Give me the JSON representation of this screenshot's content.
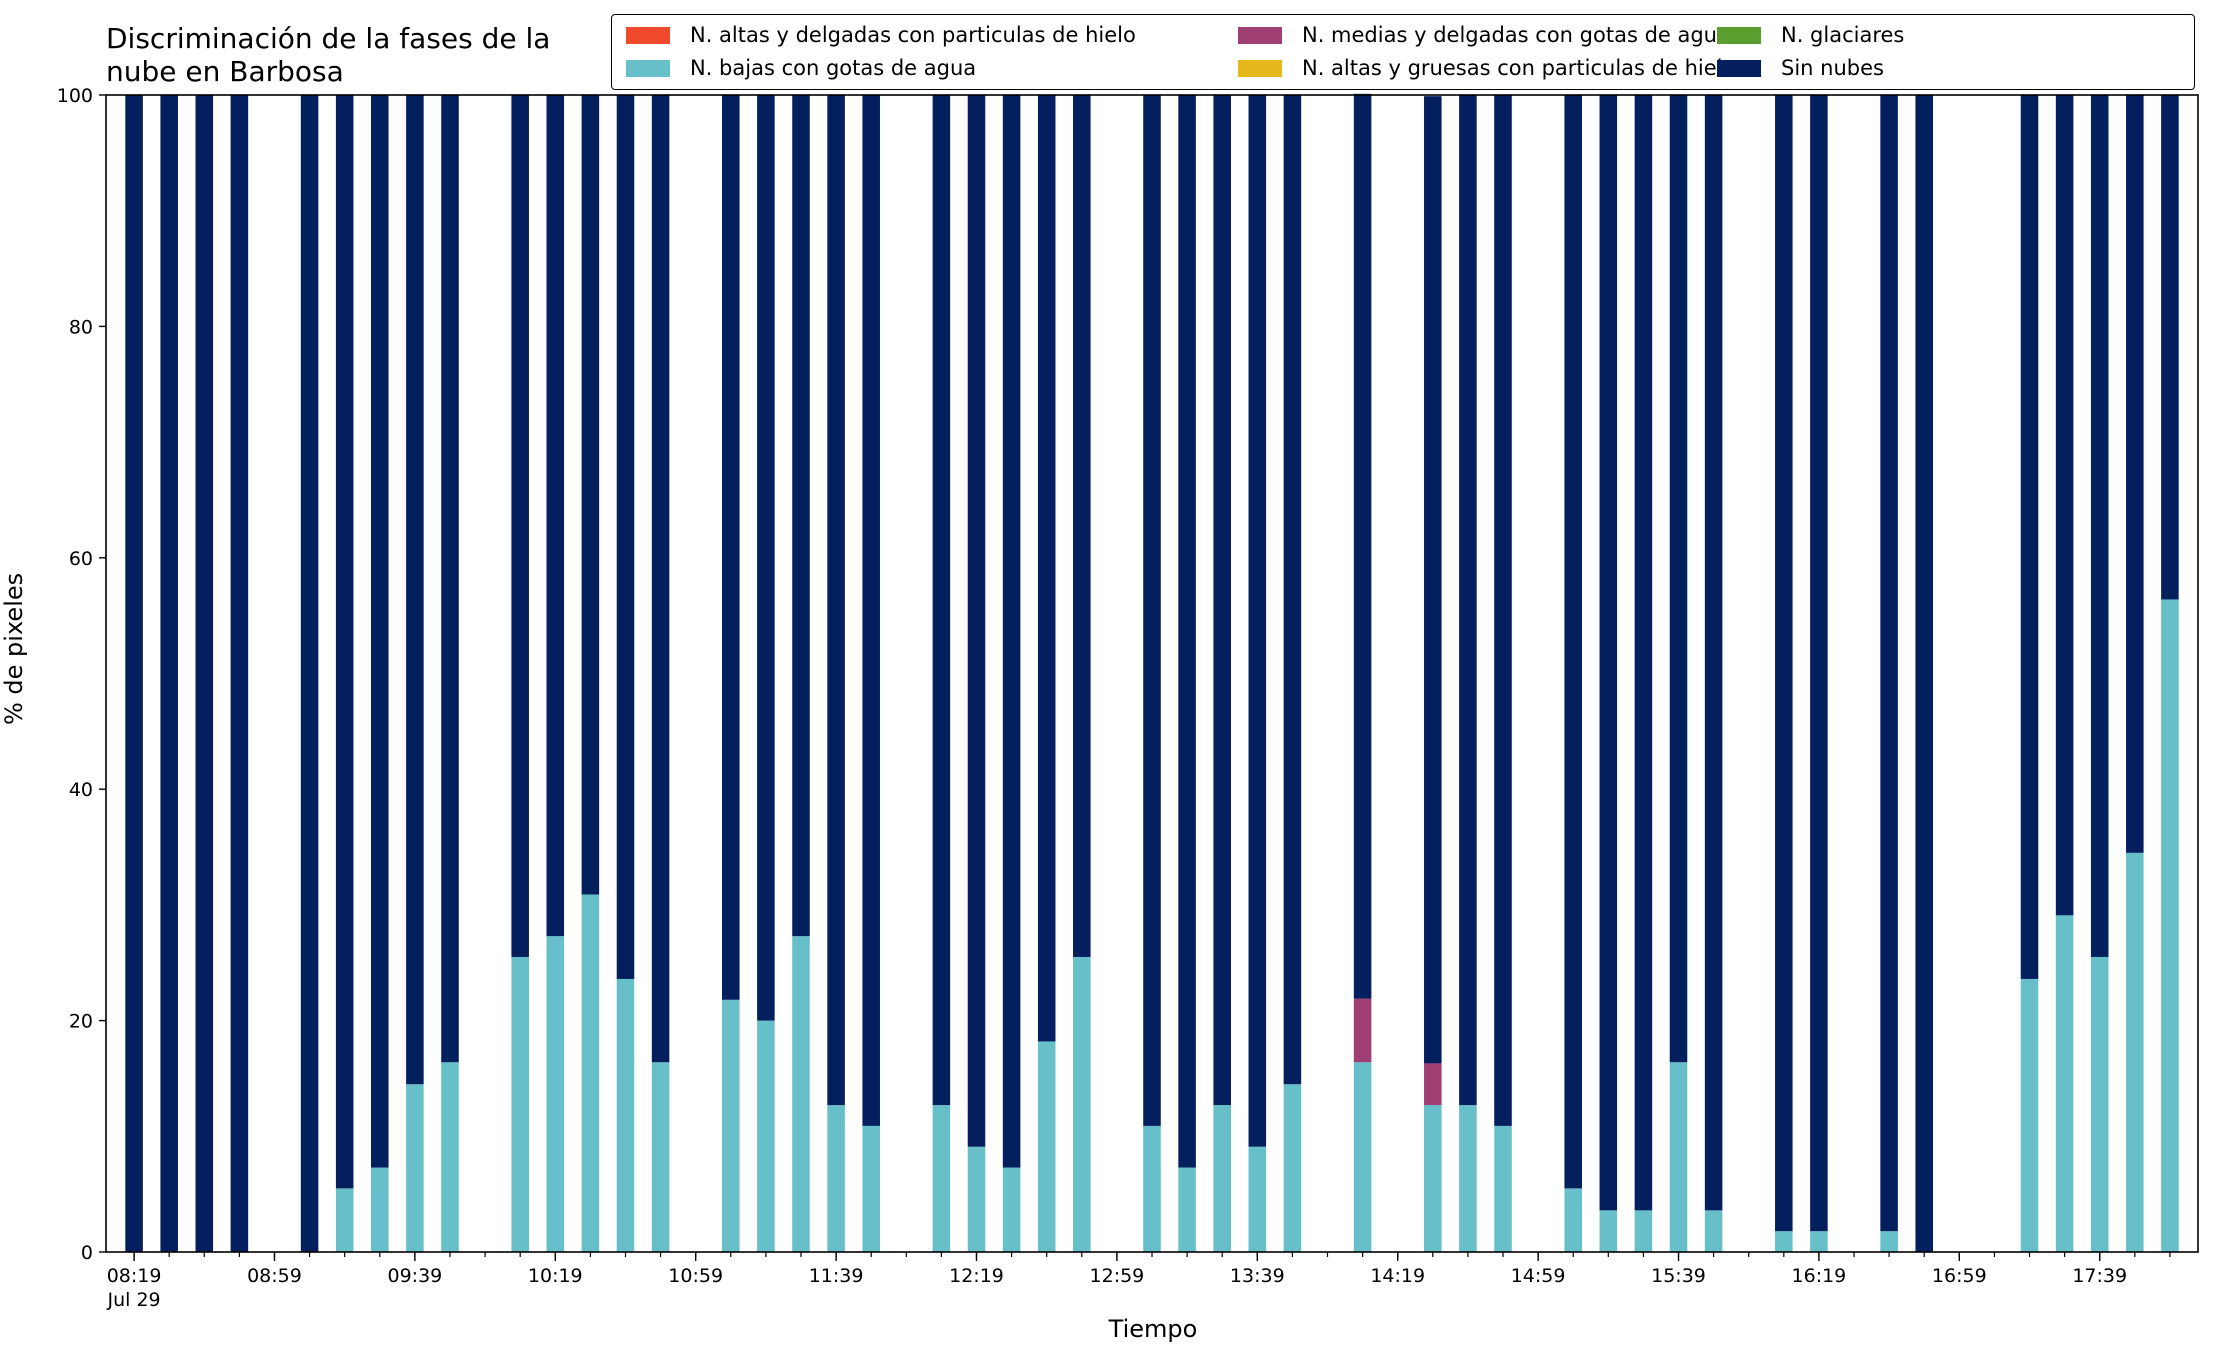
{
  "chart_data": {
    "type": "bar",
    "stacked": true,
    "title": "Discriminación de la fases de la\nnube en Barbosa",
    "xlabel": "Tiempo",
    "ylabel": "% de pixeles",
    "ylim": [
      0,
      100
    ],
    "y_ticks": [
      0,
      20,
      40,
      60,
      80,
      100
    ],
    "grid": false,
    "legend_placement": "top",
    "x_range": [
      "08:19",
      "17:59"
    ],
    "x_interval_minutes": 10,
    "x_ticks": [
      {
        "time": "08:19",
        "label": "08:19",
        "sublabel": "Jul 29"
      },
      {
        "time": "08:59",
        "label": "08:59",
        "sublabel": ""
      },
      {
        "time": "09:39",
        "label": "09:39",
        "sublabel": ""
      },
      {
        "time": "10:19",
        "label": "10:19",
        "sublabel": ""
      },
      {
        "time": "10:59",
        "label": "10:59",
        "sublabel": ""
      },
      {
        "time": "11:39",
        "label": "11:39",
        "sublabel": ""
      },
      {
        "time": "12:19",
        "label": "12:19",
        "sublabel": ""
      },
      {
        "time": "12:59",
        "label": "12:59",
        "sublabel": ""
      },
      {
        "time": "13:39",
        "label": "13:39",
        "sublabel": ""
      },
      {
        "time": "14:19",
        "label": "14:19",
        "sublabel": ""
      },
      {
        "time": "14:59",
        "label": "14:59",
        "sublabel": ""
      },
      {
        "time": "15:39",
        "label": "15:39",
        "sublabel": ""
      },
      {
        "time": "16:19",
        "label": "16:19",
        "sublabel": ""
      },
      {
        "time": "16:59",
        "label": "16:59",
        "sublabel": ""
      },
      {
        "time": "17:39",
        "label": "17:39",
        "sublabel": ""
      }
    ],
    "categories": [
      "08:19",
      "08:29",
      "08:39",
      "08:49",
      "09:09",
      "09:19",
      "09:29",
      "09:39",
      "09:49",
      "10:09",
      "10:19",
      "10:29",
      "10:39",
      "10:49",
      "11:09",
      "11:19",
      "11:29",
      "11:39",
      "11:49",
      "12:09",
      "12:19",
      "12:29",
      "12:39",
      "12:49",
      "13:09",
      "13:19",
      "13:29",
      "13:39",
      "13:49",
      "14:09",
      "14:29",
      "14:39",
      "14:49",
      "15:09",
      "15:19",
      "15:29",
      "15:39",
      "15:49",
      "16:09",
      "16:19",
      "16:39",
      "16:49",
      "17:19",
      "17:29",
      "17:39",
      "17:49",
      "17:59"
    ],
    "series": [
      {
        "name": "N. altas y delgadas con particulas de hielo",
        "color": "#ee4a2b",
        "values": [
          0,
          0,
          0,
          0,
          0,
          0,
          0,
          0,
          0,
          0,
          0,
          0,
          0,
          0,
          0,
          0,
          0,
          0,
          0,
          0,
          0,
          0,
          0,
          0,
          0,
          0,
          0,
          0,
          0,
          0,
          0,
          0,
          0,
          0,
          0,
          0,
          0,
          0,
          0,
          0,
          0,
          0,
          0,
          0,
          0,
          0,
          0
        ]
      },
      {
        "name": "N. altas y gruesas con particulas de hielo",
        "color": "#e6b81c",
        "values": [
          0,
          0,
          0,
          0,
          0,
          0,
          0,
          0,
          0,
          0,
          0,
          0,
          0,
          0,
          0,
          0,
          0,
          0,
          0,
          0,
          0,
          0,
          0,
          0,
          0,
          0,
          0,
          0,
          0,
          0,
          0,
          0,
          0,
          0,
          0,
          0,
          0,
          0,
          0,
          0,
          0,
          0,
          0,
          0,
          0,
          0,
          0
        ]
      },
      {
        "name": "N. bajas con gotas de agua",
        "color": "#66bfc9",
        "values": [
          0,
          0,
          0,
          0,
          0,
          5.5,
          7.3,
          14.5,
          16.4,
          25.5,
          27.3,
          30.9,
          23.6,
          16.4,
          21.8,
          20.0,
          27.3,
          12.7,
          10.9,
          12.7,
          9.1,
          7.3,
          18.2,
          25.5,
          10.9,
          7.3,
          12.7,
          9.1,
          14.5,
          16.4,
          12.7,
          12.7,
          10.9,
          5.5,
          3.6,
          3.6,
          16.4,
          3.6,
          1.8,
          1.8,
          1.8,
          0,
          23.6,
          29.1,
          25.5,
          34.5,
          56.4
        ]
      },
      {
        "name": "N. glaciares",
        "color": "#5a9e2f",
        "values": [
          0,
          0,
          0,
          0,
          0,
          0,
          0,
          0,
          0,
          0,
          0,
          0,
          0,
          0,
          0,
          0,
          0,
          0,
          0,
          0,
          0,
          0,
          0,
          0,
          0,
          0,
          0,
          0,
          0,
          0,
          0,
          0,
          0,
          0,
          0,
          0,
          0,
          0,
          0,
          0,
          0,
          0,
          0,
          0,
          0,
          0,
          0
        ]
      },
      {
        "name": "N. medias y delgadas con gotas de agua",
        "color": "#a03f74",
        "values": [
          0,
          0,
          0,
          0,
          0,
          0,
          0,
          0,
          0,
          0,
          0,
          0,
          0,
          0,
          0,
          0,
          0,
          0,
          0,
          0,
          0,
          0,
          0,
          0,
          0,
          0,
          0,
          0,
          0,
          5.5,
          3.6,
          0,
          0,
          0,
          0,
          0,
          0,
          0,
          0,
          0,
          0,
          0,
          0,
          0,
          0,
          0,
          0
        ]
      },
      {
        "name": "Sin nubes",
        "color": "#031f5e",
        "values": [
          100,
          100,
          100,
          100,
          100,
          94.5,
          92.7,
          85.5,
          83.6,
          74.5,
          72.7,
          69.1,
          76.4,
          83.6,
          78.2,
          80.0,
          72.7,
          87.3,
          89.1,
          87.3,
          90.9,
          92.7,
          81.8,
          74.5,
          89.1,
          92.7,
          87.3,
          90.9,
          85.5,
          78.2,
          83.6,
          87.3,
          89.1,
          94.5,
          96.4,
          96.4,
          83.6,
          96.4,
          98.2,
          98.2,
          98.2,
          100,
          76.4,
          70.9,
          74.5,
          65.5,
          43.6
        ]
      }
    ]
  }
}
